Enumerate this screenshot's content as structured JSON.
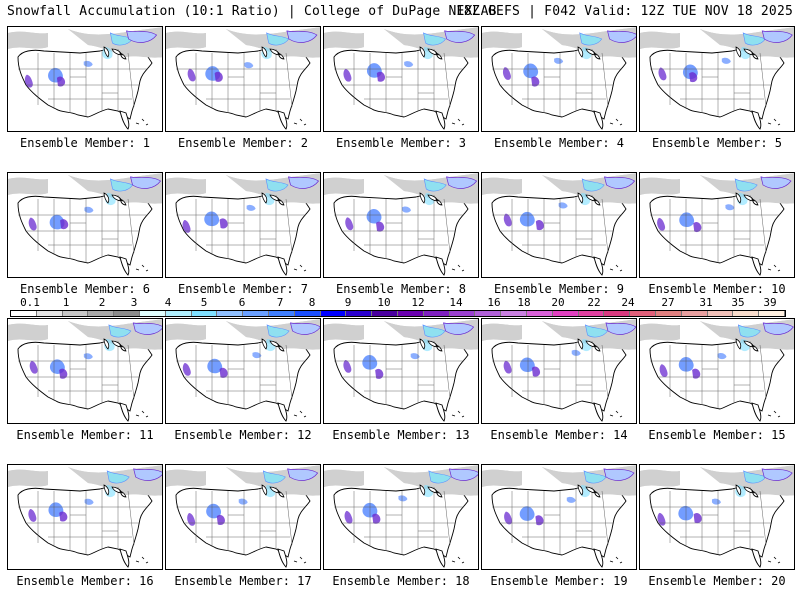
{
  "header": {
    "title": "Snowfall Accumulation (10:1 Ratio) | College of DuPage NEXLAB",
    "run_info": "18Z GEFS | F042 Valid: 12Z TUE NOV 18 2025"
  },
  "panels": [
    {
      "label": "Ensemble Member: 1"
    },
    {
      "label": "Ensemble Member: 2"
    },
    {
      "label": "Ensemble Member: 3"
    },
    {
      "label": "Ensemble Member: 4"
    },
    {
      "label": "Ensemble Member: 5"
    },
    {
      "label": "Ensemble Member: 6"
    },
    {
      "label": "Ensemble Member: 7"
    },
    {
      "label": "Ensemble Member: 8"
    },
    {
      "label": "Ensemble Member: 9"
    },
    {
      "label": "Ensemble Member: 10"
    },
    {
      "label": "Ensemble Member: 11"
    },
    {
      "label": "Ensemble Member: 12"
    },
    {
      "label": "Ensemble Member: 13"
    },
    {
      "label": "Ensemble Member: 14"
    },
    {
      "label": "Ensemble Member: 15"
    },
    {
      "label": "Ensemble Member: 16"
    },
    {
      "label": "Ensemble Member: 17"
    },
    {
      "label": "Ensemble Member: 18"
    },
    {
      "label": "Ensemble Member: 19"
    },
    {
      "label": "Ensemble Member: 20"
    }
  ],
  "colorbar": {
    "ticks": [
      "0.1",
      "1",
      "2",
      "3",
      "4",
      "5",
      "6",
      "7",
      "8",
      "9",
      "10",
      "12",
      "14",
      "16",
      "18",
      "20",
      "22",
      "24",
      "27",
      "31",
      "35",
      "39"
    ],
    "colors": [
      "#ffffff",
      "#e3e3e3",
      "#c6c6c6",
      "#a8a8a8",
      "#8c8c8c",
      "#e0ffff",
      "#b0f0ff",
      "#7fe0ff",
      "#8fc0ff",
      "#6aa0ff",
      "#3f7fff",
      "#1a4fff",
      "#0000ff",
      "#2a00d0",
      "#4a00a0",
      "#6a00b0",
      "#7f20c0",
      "#9a40d0",
      "#b060d8",
      "#c880e0",
      "#d860d8",
      "#e040c0",
      "#e040a0",
      "#d83a80",
      "#e0607a",
      "#e08080",
      "#e8a0a0",
      "#f0c0b8",
      "#f8dccc",
      "#fff0e0"
    ]
  },
  "colors": {
    "land_bg": "#ffffff",
    "snow_light": "#d0d0d0",
    "snow_blue": "#5a8cff",
    "snow_purple": "#6a2bd0",
    "border": "#000000"
  }
}
